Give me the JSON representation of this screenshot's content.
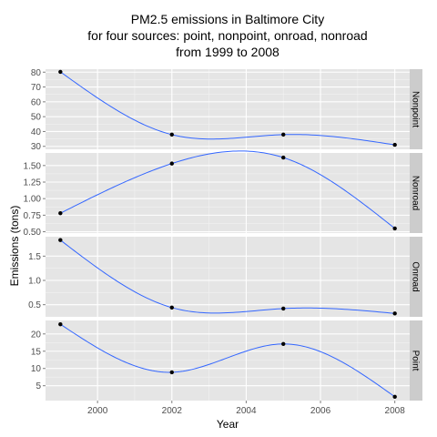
{
  "chart_data": {
    "type": "line",
    "title_lines": [
      "PM2.5 emissions in Baltimore City",
      "for four sources: point, nonpoint, onroad, nonroad",
      "from 1999 to 2008"
    ],
    "xlabel": "Year",
    "ylabel": "Emissions (tons)",
    "x_ticks": [
      "2000",
      "2002",
      "2004",
      "2006",
      "2008"
    ],
    "xlim": [
      1998.6,
      2008.4
    ],
    "grid": true,
    "smooth": true,
    "colors": {
      "panel_bg": "#e5e5e5",
      "strip_bg": "#cccccc",
      "grid_major": "#ffffff",
      "grid_minor": "#f2f2f2",
      "line": "#3366ff",
      "point": "#000000"
    },
    "panels": [
      {
        "name": "Nonpoint",
        "x": [
          1999,
          2002,
          2005,
          2008
        ],
        "values": [
          80.2,
          37.9,
          37.9,
          31.0
        ],
        "ylim": [
          28,
          82
        ],
        "y_ticks": [
          "30",
          "40",
          "50",
          "60",
          "70",
          "80"
        ]
      },
      {
        "name": "Nonroad",
        "x": [
          1999,
          2002,
          2005,
          2008
        ],
        "values": [
          0.78,
          1.53,
          1.62,
          0.55
        ],
        "ylim": [
          0.48,
          1.69
        ],
        "y_ticks": [
          "0.50",
          "0.75",
          "1.00",
          "1.25",
          "1.50"
        ]
      },
      {
        "name": "Onroad",
        "x": [
          1999,
          2002,
          2005,
          2008
        ],
        "values": [
          1.83,
          0.44,
          0.42,
          0.32
        ],
        "ylim": [
          0.25,
          1.9
        ],
        "y_ticks": [
          "0.5",
          "1.0",
          "1.5"
        ]
      },
      {
        "name": "Point",
        "x": [
          1999,
          2002,
          2005,
          2008
        ],
        "values": [
          22.8,
          8.9,
          17.1,
          1.8
        ],
        "ylim": [
          0.7,
          23.9
        ],
        "y_ticks": [
          "5",
          "10",
          "15",
          "20"
        ]
      }
    ]
  }
}
